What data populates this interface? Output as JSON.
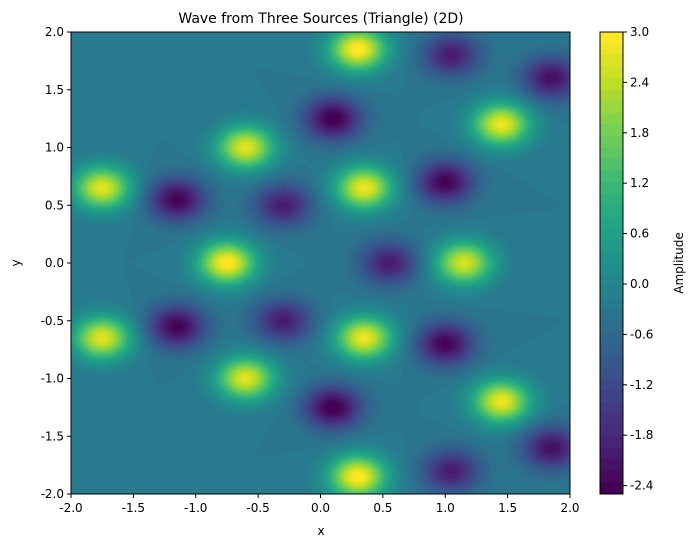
{
  "chart_data": {
    "type": "heatmap",
    "subtype": "filled-contour",
    "title": "Wave from Three Sources (Triangle) (2D)",
    "xlabel": "x",
    "ylabel": "y",
    "xlim": [
      -2.0,
      2.0
    ],
    "ylim": [
      -2.0,
      2.0
    ],
    "xticks": [
      "-2.0",
      "-1.5",
      "-1.0",
      "-0.5",
      "0.0",
      "0.5",
      "1.0",
      "1.5",
      "2.0"
    ],
    "yticks": [
      "-2.0",
      "-1.5",
      "-1.0",
      "-0.5",
      "0.0",
      "0.5",
      "1.0",
      "1.5",
      "2.0"
    ],
    "colormap": "viridis",
    "colorbar": {
      "label": "Amplitude",
      "vmin": -2.5,
      "vmax": 3.0,
      "ticks": [
        "-2.4",
        "-1.8",
        "-1.2",
        "-0.6",
        "0.0",
        "0.6",
        "1.2",
        "1.8",
        "2.4",
        "3.0"
      ]
    },
    "peaks": [
      {
        "x": -0.75,
        "y": 0.0,
        "amplitude": 3.0
      },
      {
        "x": 0.3,
        "y": 1.85,
        "amplitude": 3.0
      },
      {
        "x": 0.3,
        "y": -1.85,
        "amplitude": 3.0
      },
      {
        "x": 0.35,
        "y": 0.65,
        "amplitude": 2.8
      },
      {
        "x": 0.35,
        "y": -0.65,
        "amplitude": 2.8
      },
      {
        "x": -0.6,
        "y": 1.0,
        "amplitude": 2.7
      },
      {
        "x": -0.6,
        "y": -1.0,
        "amplitude": 2.7
      },
      {
        "x": -1.75,
        "y": 0.65,
        "amplitude": 2.7
      },
      {
        "x": -1.75,
        "y": -0.65,
        "amplitude": 2.7
      },
      {
        "x": 1.45,
        "y": 1.2,
        "amplitude": 2.8
      },
      {
        "x": 1.45,
        "y": -1.2,
        "amplitude": 2.8
      },
      {
        "x": 1.15,
        "y": 0.0,
        "amplitude": 2.6
      }
    ],
    "troughs": [
      {
        "x": 0.1,
        "y": 1.25,
        "amplitude": -2.5
      },
      {
        "x": 0.1,
        "y": -1.25,
        "amplitude": -2.5
      },
      {
        "x": -1.15,
        "y": 0.55,
        "amplitude": -2.4
      },
      {
        "x": -1.15,
        "y": -0.55,
        "amplitude": -2.4
      },
      {
        "x": 1.0,
        "y": 0.7,
        "amplitude": -2.4
      },
      {
        "x": 1.0,
        "y": -0.7,
        "amplitude": -2.4
      },
      {
        "x": -0.3,
        "y": 0.5,
        "amplitude": -2.0
      },
      {
        "x": -0.3,
        "y": -0.5,
        "amplitude": -2.0
      },
      {
        "x": 0.55,
        "y": 0.0,
        "amplitude": -2.0
      },
      {
        "x": 1.05,
        "y": 1.8,
        "amplitude": -2.0
      },
      {
        "x": 1.05,
        "y": -1.8,
        "amplitude": -2.0
      },
      {
        "x": 1.85,
        "y": 1.6,
        "amplitude": -2.2
      },
      {
        "x": 1.85,
        "y": -1.6,
        "amplitude": -2.2
      }
    ]
  }
}
